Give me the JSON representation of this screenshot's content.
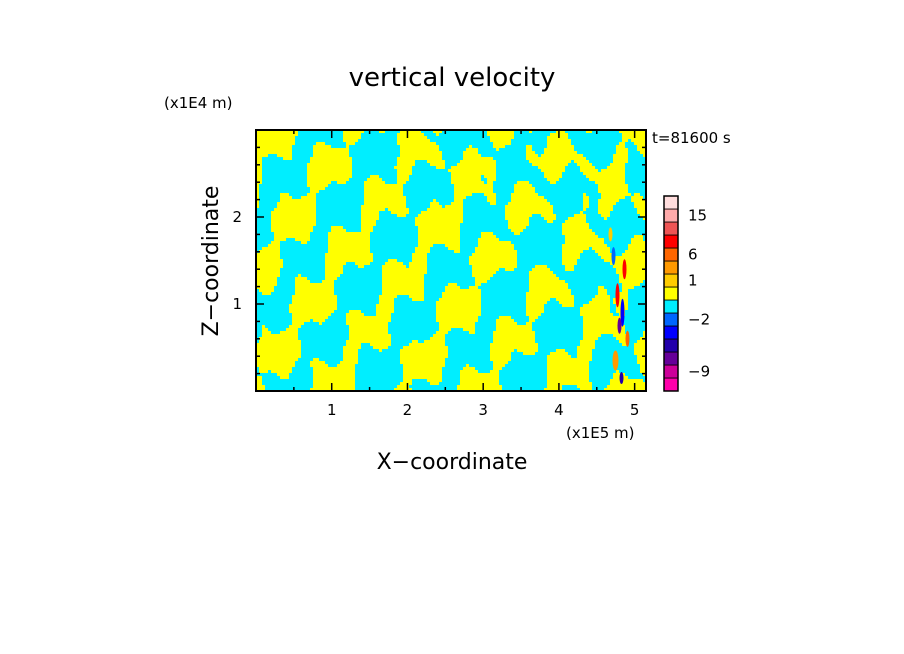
{
  "chart_data": {
    "type": "heatmap",
    "title": "vertical velocity",
    "xlabel": "X−coordinate",
    "ylabel": "Z−coordinate",
    "x_unit": "(x1E5 m)",
    "y_unit": "(x1E4 m)",
    "time_label": "t=81600 s",
    "xlim": [
      0,
      5.15
    ],
    "ylim": [
      0,
      3.0
    ],
    "x_ticks": [
      1,
      2,
      3,
      4,
      5
    ],
    "x_tick_labels": [
      "1",
      "2",
      "3",
      "4",
      "5"
    ],
    "y_ticks": [
      1,
      2
    ],
    "y_tick_labels": [
      "1",
      "2"
    ],
    "grid": false,
    "dominant_fill": {
      "positive": "#ffff00",
      "negative": "#00eeff"
    },
    "colorbar": {
      "levels": [
        {
          "color": "#ff00aa"
        },
        {
          "color": "#cc0099"
        },
        {
          "color": "#660099"
        },
        {
          "color": "#2200aa"
        },
        {
          "color": "#0000ff"
        },
        {
          "color": "#0066ff"
        },
        {
          "color": "#00eeff"
        },
        {
          "color": "#ffff00"
        },
        {
          "color": "#ffcc00"
        },
        {
          "color": "#ff9900"
        },
        {
          "color": "#ff6600"
        },
        {
          "color": "#ff0000"
        },
        {
          "color": "#ee5555"
        },
        {
          "color": "#ffaaaa"
        },
        {
          "color": "#ffdddd"
        }
      ],
      "labels": [
        {
          "text": "15",
          "level_index": 13
        },
        {
          "text": "6",
          "level_index": 10
        },
        {
          "text": "1",
          "level_index": 8
        },
        {
          "text": "−2",
          "level_index": 5
        },
        {
          "text": "−9",
          "level_index": 1
        }
      ]
    }
  }
}
